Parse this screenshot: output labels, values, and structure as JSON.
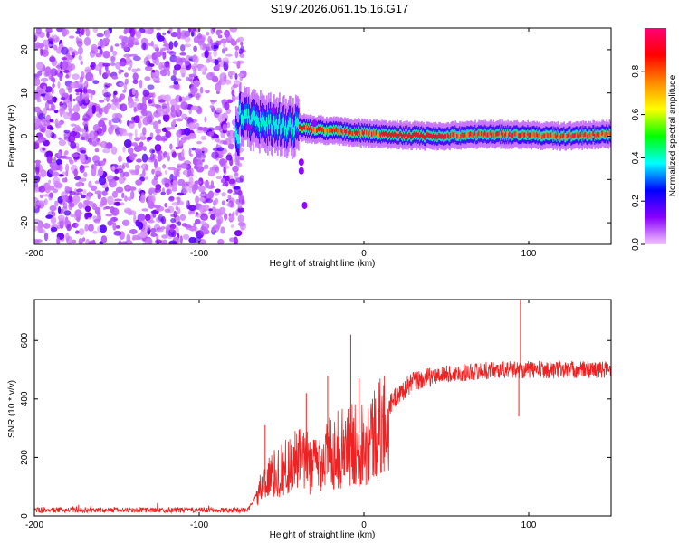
{
  "title": "S197.2026.061.15.16.G17",
  "chart_data": [
    {
      "type": "heatmap",
      "title": "S197.2026.061.15.16.G17",
      "xlabel": "Height of straight line (km)",
      "ylabel": "Frequency (Hz)",
      "xlim": [
        -200,
        150
      ],
      "ylim": [
        -25,
        25
      ],
      "xticks": [
        -200,
        -100,
        0,
        100
      ],
      "xtick_labels": [
        "-200",
        "-100",
        "0",
        "100"
      ],
      "yticks": [
        -20,
        -10,
        0,
        10,
        20
      ],
      "ytick_labels": [
        "-20",
        "-10",
        "0",
        "10",
        "20"
      ],
      "colorbar": {
        "label": "Normalized spectral amplitude",
        "range": [
          0,
          1
        ],
        "ticks": [
          0.0,
          0.2,
          0.4,
          0.6,
          0.8
        ],
        "tick_labels": [
          "0.0",
          "0.2",
          "0.4",
          "0.6",
          "0.8"
        ],
        "colors": [
          "#f4c4ff",
          "#8800ff",
          "#0000ff",
          "#00ffff",
          "#00ff00",
          "#ffff00",
          "#ff8800",
          "#ff0000",
          "#ff0077"
        ]
      },
      "noise_region_x": [
        -200,
        -73
      ],
      "ridge_center_hz": [
        {
          "x": -76,
          "y": 5
        },
        {
          "x": -65,
          "y": 3.5
        },
        {
          "x": -50,
          "y": 2.5
        },
        {
          "x": -30,
          "y": 1.5
        },
        {
          "x": -10,
          "y": 1
        },
        {
          "x": 10,
          "y": 0.5
        },
        {
          "x": 40,
          "y": 0
        },
        {
          "x": 80,
          "y": 0.5
        },
        {
          "x": 120,
          "y": 0
        },
        {
          "x": 150,
          "y": 0.5
        }
      ]
    },
    {
      "type": "line",
      "xlabel": "Height of straight line (km)",
      "ylabel": "SNR (10 * v/v)",
      "xlim": [
        -200,
        150
      ],
      "ylim": [
        0,
        740
      ],
      "xticks": [
        -200,
        -100,
        0,
        100
      ],
      "xtick_labels": [
        "-200",
        "-100",
        "0",
        "100"
      ],
      "yticks": [
        0,
        200,
        400,
        600
      ],
      "ytick_labels": [
        "0",
        "200",
        "400",
        "600"
      ],
      "color": "#ee2222",
      "envelope": [
        {
          "x": -200,
          "y": 20
        },
        {
          "x": -70,
          "y": 20
        },
        {
          "x": -60,
          "y": 140
        },
        {
          "x": -50,
          "y": 180
        },
        {
          "x": -40,
          "y": 220
        },
        {
          "x": -30,
          "y": 200
        },
        {
          "x": -20,
          "y": 250
        },
        {
          "x": -10,
          "y": 270
        },
        {
          "x": 0,
          "y": 290
        },
        {
          "x": 10,
          "y": 340
        },
        {
          "x": 20,
          "y": 410
        },
        {
          "x": 30,
          "y": 460
        },
        {
          "x": 50,
          "y": 485
        },
        {
          "x": 80,
          "y": 500
        },
        {
          "x": 150,
          "y": 500
        }
      ],
      "spikes": [
        {
          "x": -60,
          "y": 310
        },
        {
          "x": -35,
          "y": 420
        },
        {
          "x": -22,
          "y": 480
        },
        {
          "x": -8,
          "y": 620
        },
        {
          "x": -3,
          "y": 470
        },
        {
          "x": 95,
          "y": 740
        },
        {
          "x": 94,
          "y": 340
        }
      ]
    }
  ]
}
